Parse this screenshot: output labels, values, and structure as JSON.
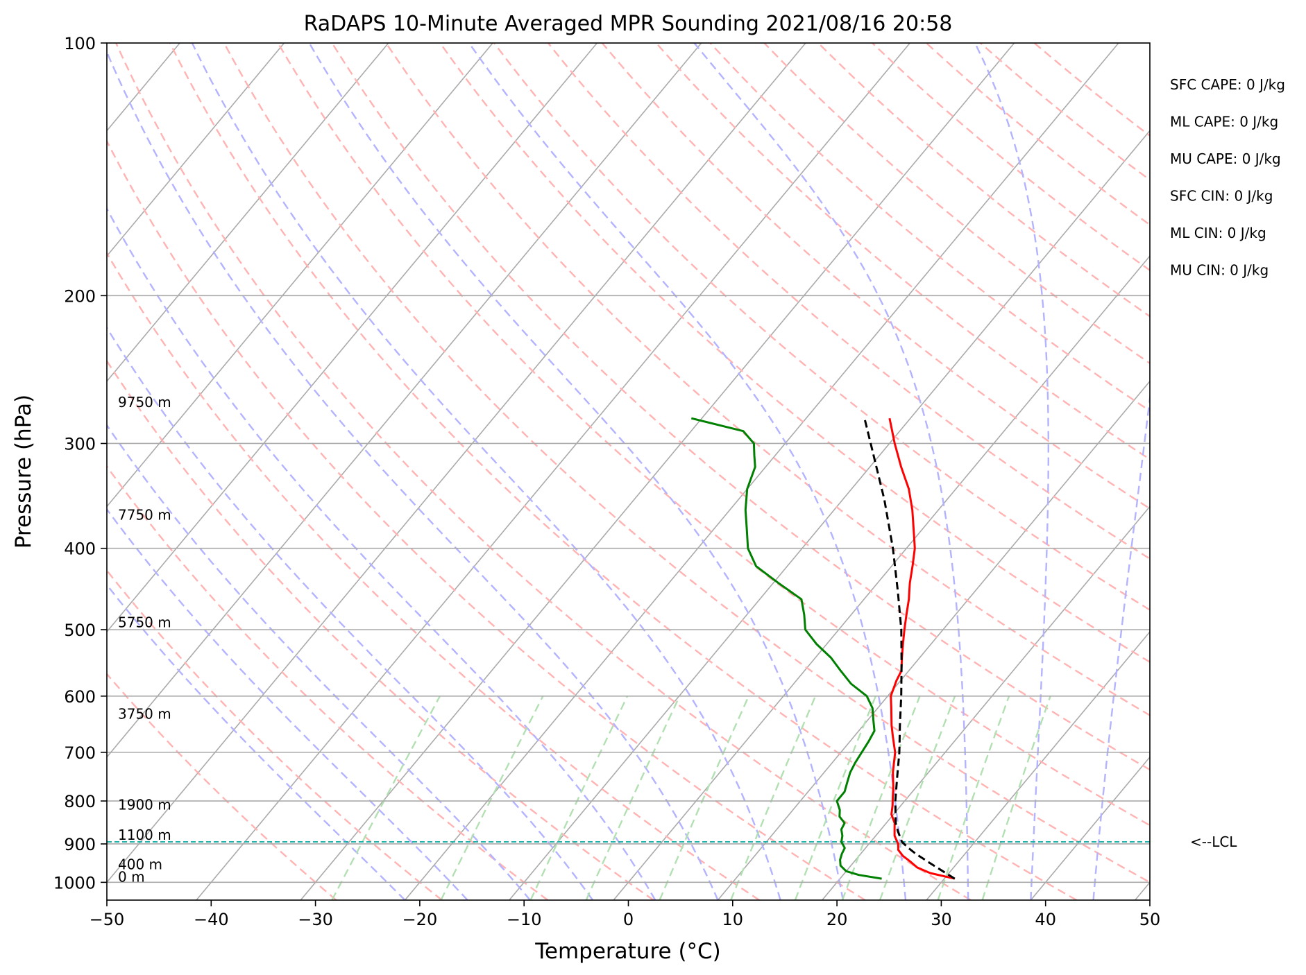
{
  "chart_data": {
    "type": "skew-t",
    "title": "RaDAPS 10-Minute Averaged MPR Sounding 2021/08/16 20:58",
    "xlabel": "Temperature (°C)",
    "ylabel": "Pressure (hPa)",
    "xlim": [
      -50,
      50
    ],
    "ylim": [
      1050,
      100
    ],
    "log_pressure": true,
    "skew_deg_per_decade": 67,
    "x_ticks": [
      -50,
      -40,
      -30,
      -20,
      -10,
      0,
      10,
      20,
      30,
      40,
      50
    ],
    "x_tick_labels": [
      "−50",
      "−40",
      "−30",
      "−20",
      "−10",
      "0",
      "10",
      "20",
      "30",
      "40",
      "50"
    ],
    "y_ticks": [
      1000,
      900,
      800,
      700,
      600,
      500,
      400,
      300,
      200,
      100
    ],
    "y_tick_labels": [
      "1000",
      "900",
      "800",
      "700",
      "600",
      "500",
      "400",
      "300",
      "200",
      "100"
    ],
    "grid": true,
    "colors": {
      "temperature": "#ff0000",
      "dewpoint": "#008000",
      "parcel": "#000000",
      "isotherm": "#aaaaaa",
      "dry_adiabat": "#ffb3b3",
      "moist_adiabat": "#b3b3ff",
      "mixing_ratio": "#b3e0b3",
      "lcl": "#20b2aa"
    },
    "series": [
      {
        "kind": "temperature",
        "pressure": [
          990,
          975,
          960,
          945,
          930,
          915,
          900,
          880,
          865,
          850,
          830,
          810,
          790,
          770,
          740,
          700,
          670,
          650,
          620,
          600,
          575,
          560,
          540,
          520,
          500,
          480,
          460,
          440,
          420,
          400,
          380,
          360,
          340,
          320,
          300,
          280
        ],
        "values": [
          31.0,
          28.2,
          26.5,
          25.4,
          24.2,
          23.3,
          22.8,
          21.8,
          21.3,
          20.8,
          19.8,
          19.2,
          18.5,
          17.8,
          16.6,
          15.2,
          13.7,
          12.7,
          11.3,
          10.3,
          9.6,
          9.3,
          8.3,
          7.3,
          6.3,
          5.3,
          4.3,
          3.1,
          2.0,
          0.8,
          -0.8,
          -2.5,
          -4.5,
          -7.0,
          -9.5,
          -12.0
        ]
      },
      {
        "kind": "dewpoint",
        "pressure": [
          990,
          980,
          970,
          955,
          940,
          925,
          910,
          895,
          880,
          865,
          850,
          835,
          820,
          800,
          780,
          760,
          740,
          720,
          700,
          680,
          660,
          640,
          620,
          600,
          580,
          560,
          540,
          520,
          500,
          480,
          460,
          440,
          420,
          400,
          380,
          360,
          340,
          320,
          310,
          300,
          290,
          280
        ],
        "values": [
          24.0,
          21.5,
          20.0,
          19.0,
          18.5,
          18.2,
          18.0,
          17.2,
          16.8,
          16.2,
          16.0,
          15.0,
          14.5,
          13.5,
          13.5,
          13.0,
          12.5,
          12.2,
          12.0,
          11.8,
          11.5,
          10.5,
          9.5,
          8.0,
          5.5,
          3.5,
          1.5,
          -1.0,
          -3.2,
          -4.5,
          -6.0,
          -9.5,
          -13.0,
          -15.2,
          -16.8,
          -18.5,
          -20.0,
          -21.0,
          -22.0,
          -23.0,
          -25.0,
          -31.0
        ]
      },
      {
        "kind": "parcel",
        "pressure": [
          990,
          950,
          925,
          910,
          895,
          870,
          850,
          800,
          750,
          700,
          650,
          600,
          550,
          500,
          450,
          400,
          350,
          300,
          280
        ],
        "values": [
          31.0,
          27.5,
          25.3,
          24.1,
          23.0,
          21.8,
          20.9,
          19.1,
          17.4,
          15.6,
          13.5,
          11.3,
          8.8,
          6.0,
          2.6,
          -1.3,
          -6.0,
          -11.8,
          -14.4
        ]
      }
    ],
    "lcl_pressure": 895,
    "lcl_label": "<--LCL",
    "height_labels": [
      {
        "pressure": 985,
        "label": "0 m"
      },
      {
        "pressure": 952,
        "label": "400 m"
      },
      {
        "pressure": 878,
        "label": "1100 m"
      },
      {
        "pressure": 808,
        "label": "1900 m"
      },
      {
        "pressure": 630,
        "label": "3750 m"
      },
      {
        "pressure": 490,
        "label": "5750 m"
      },
      {
        "pressure": 365,
        "label": "7750 m"
      },
      {
        "pressure": 268,
        "label": "9750 m"
      }
    ],
    "annotations": [
      "SFC CAPE: 0 J/kg",
      "ML CAPE: 0 J/kg",
      "MU CAPE: 0 J/kg",
      "SFC CIN: 0 J/kg",
      "ML CIN: 0 J/kg",
      "MU CIN: 0 J/kg"
    ]
  }
}
